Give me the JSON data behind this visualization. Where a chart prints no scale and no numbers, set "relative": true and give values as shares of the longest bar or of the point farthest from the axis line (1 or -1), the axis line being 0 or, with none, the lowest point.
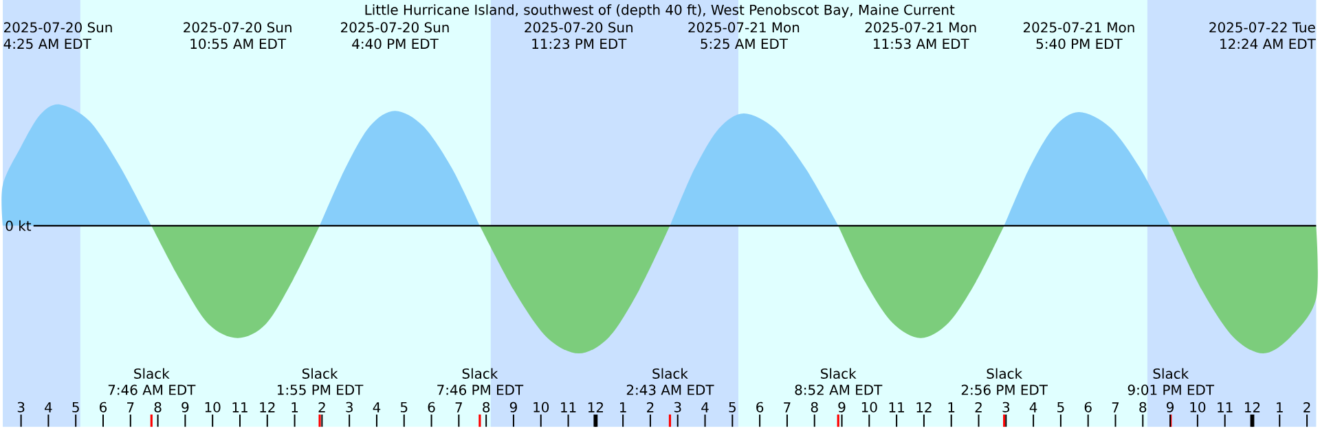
{
  "chart_data": {
    "type": "area",
    "title": "Little Hurricane Island, southwest of (depth 40 ft), West Penobscot Bay, Maine Current",
    "ylabel": "0 kt",
    "relative": true,
    "xlim": [
      "2025-07-20T02:20",
      "2025-07-22T02:20"
    ],
    "xticks": [
      {
        "value": "2025-07-20T03:00",
        "label": "3"
      },
      {
        "value": "2025-07-20T04:00",
        "label": "4"
      },
      {
        "value": "2025-07-20T05:00",
        "label": "5"
      },
      {
        "value": "2025-07-20T06:00",
        "label": "6"
      },
      {
        "value": "2025-07-20T07:00",
        "label": "7"
      },
      {
        "value": "2025-07-20T08:00",
        "label": "8"
      },
      {
        "value": "2025-07-20T09:00",
        "label": "9"
      },
      {
        "value": "2025-07-20T10:00",
        "label": "10"
      },
      {
        "value": "2025-07-20T11:00",
        "label": "11"
      },
      {
        "value": "2025-07-20T12:00",
        "label": "12"
      },
      {
        "value": "2025-07-20T13:00",
        "label": "1"
      },
      {
        "value": "2025-07-20T14:00",
        "label": "2"
      },
      {
        "value": "2025-07-20T15:00",
        "label": "3"
      },
      {
        "value": "2025-07-20T16:00",
        "label": "4"
      },
      {
        "value": "2025-07-20T17:00",
        "label": "5"
      },
      {
        "value": "2025-07-20T18:00",
        "label": "6"
      },
      {
        "value": "2025-07-20T19:00",
        "label": "7"
      },
      {
        "value": "2025-07-20T20:00",
        "label": "8"
      },
      {
        "value": "2025-07-20T21:00",
        "label": "9"
      },
      {
        "value": "2025-07-20T22:00",
        "label": "10"
      },
      {
        "value": "2025-07-20T23:00",
        "label": "11"
      },
      {
        "value": "2025-07-21T00:00",
        "label": "12"
      },
      {
        "value": "2025-07-21T01:00",
        "label": "1"
      },
      {
        "value": "2025-07-21T02:00",
        "label": "2"
      },
      {
        "value": "2025-07-21T03:00",
        "label": "3"
      },
      {
        "value": "2025-07-21T04:00",
        "label": "4"
      },
      {
        "value": "2025-07-21T05:00",
        "label": "5"
      },
      {
        "value": "2025-07-21T06:00",
        "label": "6"
      },
      {
        "value": "2025-07-21T07:00",
        "label": "7"
      },
      {
        "value": "2025-07-21T08:00",
        "label": "8"
      },
      {
        "value": "2025-07-21T09:00",
        "label": "9"
      },
      {
        "value": "2025-07-21T10:00",
        "label": "10"
      },
      {
        "value": "2025-07-21T11:00",
        "label": "11"
      },
      {
        "value": "2025-07-21T12:00",
        "label": "12"
      },
      {
        "value": "2025-07-21T13:00",
        "label": "1"
      },
      {
        "value": "2025-07-21T14:00",
        "label": "2"
      },
      {
        "value": "2025-07-21T15:00",
        "label": "3"
      },
      {
        "value": "2025-07-21T16:00",
        "label": "4"
      },
      {
        "value": "2025-07-21T17:00",
        "label": "5"
      },
      {
        "value": "2025-07-21T18:00",
        "label": "6"
      },
      {
        "value": "2025-07-21T19:00",
        "label": "7"
      },
      {
        "value": "2025-07-21T20:00",
        "label": "8"
      },
      {
        "value": "2025-07-21T21:00",
        "label": "9"
      },
      {
        "value": "2025-07-21T22:00",
        "label": "10"
      },
      {
        "value": "2025-07-21T23:00",
        "label": "11"
      },
      {
        "value": "2025-07-22T00:00",
        "label": "12"
      },
      {
        "value": "2025-07-22T01:00",
        "label": "1"
      },
      {
        "value": "2025-07-22T02:00",
        "label": "2"
      }
    ],
    "series": [
      {
        "color": "#87cefa",
        "x": [
          "2025-07-20T02:20",
          "2025-07-20T03:00",
          "2025-07-20T03:42",
          "2025-07-20T04:25",
          "2025-07-20T05:30",
          "2025-07-20T06:36",
          "2025-07-20T07:46",
          "2025-07-20T10:55",
          "2025-07-20T13:55",
          "2025-07-20T14:51",
          "2025-07-20T15:45",
          "2025-07-20T16:40",
          "2025-07-20T17:42",
          "2025-07-20T18:45",
          "2025-07-20T19:46",
          "2025-07-20T23:23",
          "2025-07-21T02:43",
          "2025-07-21T03:36",
          "2025-07-21T04:30",
          "2025-07-21T05:25",
          "2025-07-21T06:33",
          "2025-07-21T07:42",
          "2025-07-21T08:52",
          "2025-07-21T11:53",
          "2025-07-21T14:56",
          "2025-07-21T15:51",
          "2025-07-21T16:45",
          "2025-07-21T17:40",
          "2025-07-21T18:48",
          "2025-07-21T19:54",
          "2025-07-21T21:01"
        ],
        "values": [
          0.32,
          0.62,
          0.87,
          0.95,
          0.82,
          0.47,
          0,
          null,
          0,
          0.45,
          0.78,
          0.9,
          0.78,
          0.45,
          0,
          null,
          0,
          0.44,
          0.76,
          0.88,
          0.76,
          0.44,
          0,
          null,
          0,
          0.45,
          0.77,
          0.89,
          0.77,
          0.45,
          0
        ]
      },
      {
        "color": "#7ccd7c",
        "x": [
          "2025-07-20T07:46",
          "2025-07-20T08:48",
          "2025-07-20T09:51",
          "2025-07-20T10:55",
          "2025-07-20T11:57",
          "2025-07-20T12:57",
          "2025-07-20T13:55",
          "2025-07-20T16:40",
          "2025-07-20T19:46",
          "2025-07-20T21:00",
          "2025-07-20T22:12",
          "2025-07-20T23:23",
          "2025-07-21T00:30",
          "2025-07-21T01:36",
          "2025-07-21T02:43",
          "2025-07-21T05:25",
          "2025-07-21T08:52",
          "2025-07-21T09:51",
          "2025-07-21T10:51",
          "2025-07-21T11:53",
          "2025-07-21T12:54",
          "2025-07-21T13:54",
          "2025-07-21T14:56",
          "2025-07-21T17:40",
          "2025-07-21T21:01",
          "2025-07-21T22:09",
          "2025-07-21T23:18",
          "2025-07-22T00:24",
          "2025-07-22T01:24",
          "2025-07-22T02:20"
        ],
        "values": [
          0,
          -0.42,
          -0.77,
          -0.88,
          -0.77,
          -0.42,
          0,
          null,
          0,
          -0.5,
          -0.87,
          -1,
          -0.87,
          -0.5,
          0,
          null,
          0,
          -0.44,
          -0.76,
          -0.88,
          -0.76,
          -0.44,
          0,
          null,
          0,
          -0.5,
          -0.87,
          -1,
          -0.87,
          -0.57
        ]
      }
    ],
    "bands": [
      {
        "axis": "x",
        "from": "2025-07-20T02:20",
        "to": "2025-07-20T05:10",
        "color": "#cae1ff"
      },
      {
        "axis": "x",
        "from": "2025-07-20T20:10",
        "to": "2025-07-21T05:13",
        "color": "#cae1ff"
      },
      {
        "axis": "x",
        "from": "2025-07-21T20:10",
        "to": "2025-07-22T02:20",
        "color": "#cae1ff"
      }
    ],
    "annotations": [
      "2025-07-20 Sun",
      "4:25 AM EDT",
      "2025-07-20 Sun",
      "10:55 AM EDT",
      "2025-07-20 Sun",
      "4:40 PM EDT",
      "2025-07-20 Sun",
      "11:23 PM EDT",
      "2025-07-21 Mon",
      "5:25 AM EDT",
      "2025-07-21 Mon",
      "11:53 AM EDT",
      "2025-07-21 Mon",
      "5:40 PM EDT",
      "2025-07-22 Tue",
      "12:24 AM EDT",
      "Slack",
      "7:46 AM EDT",
      "Slack",
      "1:55 PM EDT",
      "Slack",
      "7:46 PM EDT",
      "Slack",
      "2:43 AM EDT",
      "Slack",
      "8:52 AM EDT",
      "Slack",
      "2:56 PM EDT",
      "Slack",
      "9:01 PM EDT"
    ]
  }
}
